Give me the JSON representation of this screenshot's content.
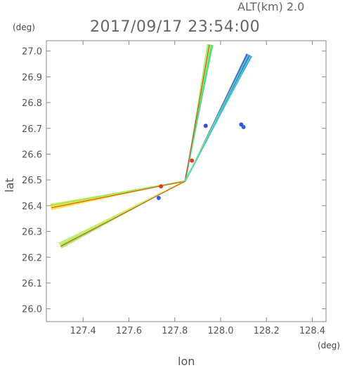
{
  "header": {
    "alt_label": "ALT(km)  2.0",
    "datetime": "2017/09/17  23:54:00",
    "y_unit": "(deg)",
    "x_unit": "(deg)"
  },
  "chart_data": {
    "type": "scatter",
    "xlabel": "lon",
    "ylabel": "lat",
    "xlim": [
      127.24,
      128.46
    ],
    "ylim": [
      25.95,
      27.04
    ],
    "xticks": [
      "127.4",
      "127.6",
      "127.8",
      "128.0",
      "128.2",
      "128.4"
    ],
    "xtick_values": [
      127.4,
      127.6,
      127.8,
      128.0,
      128.2,
      128.4
    ],
    "yticks": [
      "26.0",
      "26.1",
      "26.2",
      "26.3",
      "26.4",
      "26.5",
      "26.6",
      "26.7",
      "26.8",
      "26.9",
      "27.0"
    ],
    "ytick_values": [
      26.0,
      26.1,
      26.2,
      26.3,
      26.4,
      26.5,
      26.6,
      26.7,
      26.8,
      26.9,
      27.0
    ],
    "grid": false,
    "radar_center": [
      127.845,
      26.495
    ],
    "beams": [
      {
        "end": [
          127.26,
          26.395
        ],
        "colors": [
          "#f3e23a",
          "#a6e85a",
          "#e53a1f"
        ]
      },
      {
        "end": [
          127.3,
          26.245
        ],
        "colors": [
          "#9fec5f",
          "#c7f06a",
          "#e53a1f"
        ]
      },
      {
        "end": [
          127.955,
          27.025
        ],
        "colors": [
          "#9fec5f",
          "#57d98a",
          "#e53a1f"
        ]
      },
      {
        "end": [
          128.125,
          26.985
        ],
        "colors": [
          "#2f6fe0",
          "#3ec7d8",
          "#9fec5f"
        ]
      }
    ],
    "echoes": [
      {
        "lon": 128.09,
        "lat": 26.715,
        "color": "#2f5fe0"
      },
      {
        "lon": 128.1,
        "lat": 26.705,
        "color": "#2f5fe0"
      },
      {
        "lon": 127.935,
        "lat": 26.71,
        "color": "#3050d0"
      },
      {
        "lon": 127.74,
        "lat": 26.475,
        "color": "#e53a1f"
      },
      {
        "lon": 127.875,
        "lat": 26.575,
        "color": "#e53a1f"
      },
      {
        "lon": 127.73,
        "lat": 26.43,
        "color": "#2f5fe0"
      }
    ]
  }
}
